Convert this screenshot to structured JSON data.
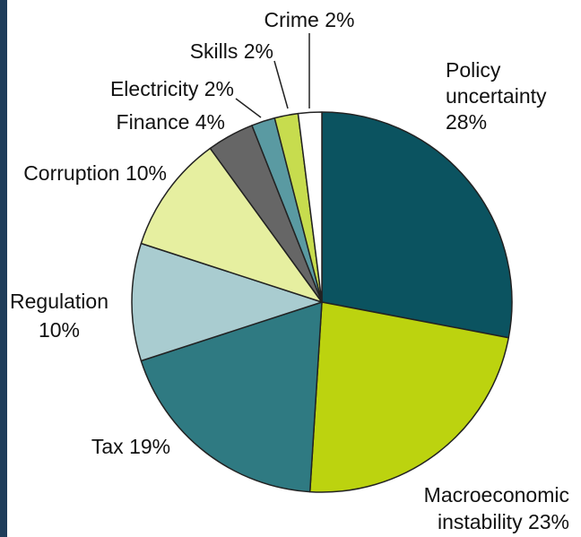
{
  "chart_data": {
    "type": "pie",
    "title": "",
    "start_angle_deg": 0,
    "direction": "clockwise",
    "slices": [
      {
        "name": "Policy uncertainty",
        "value": 28,
        "label": "28%",
        "color": "#0b5360"
      },
      {
        "name": "Macroeconomic instability",
        "value": 23,
        "label": "23%",
        "color": "#bcd30f"
      },
      {
        "name": "Tax",
        "value": 19,
        "label": "19%",
        "color": "#2f7a82"
      },
      {
        "name": "Regulation",
        "value": 10,
        "label": "10%",
        "color": "#a9ccd0"
      },
      {
        "name": "Corruption",
        "value": 10,
        "label": "10%",
        "color": "#e6efa0"
      },
      {
        "name": "Finance",
        "value": 4,
        "label": "4%",
        "color": "#666666"
      },
      {
        "name": "Electricity",
        "value": 2,
        "label": "2%",
        "color": "#5a9aa2"
      },
      {
        "name": "Skills",
        "value": 2,
        "label": "2%",
        "color": "#c7dc4e"
      },
      {
        "name": "Crime",
        "value": 2,
        "label": "2%",
        "color": "#ffffff"
      }
    ],
    "labels": [
      {
        "lines": [
          "Policy",
          "uncertainty",
          "28%"
        ],
        "anchor": "start"
      },
      {
        "lines": [
          "Macroeconomic",
          "instability 23%"
        ],
        "anchor": "end"
      },
      {
        "lines": [
          "Tax 19%"
        ],
        "anchor": "middle"
      },
      {
        "lines": [
          "Regulation",
          "10%"
        ],
        "anchor": "middle"
      },
      {
        "lines": [
          "Corruption 10%"
        ],
        "anchor": "end"
      },
      {
        "lines": [
          "Finance 4%"
        ],
        "anchor": "end"
      },
      {
        "lines": [
          "Electricity 2%"
        ],
        "anchor": "end"
      },
      {
        "lines": [
          "Skills 2%"
        ],
        "anchor": "end"
      },
      {
        "lines": [
          "Crime 2%"
        ],
        "anchor": "middle"
      }
    ],
    "legend": "none",
    "grid": false
  }
}
